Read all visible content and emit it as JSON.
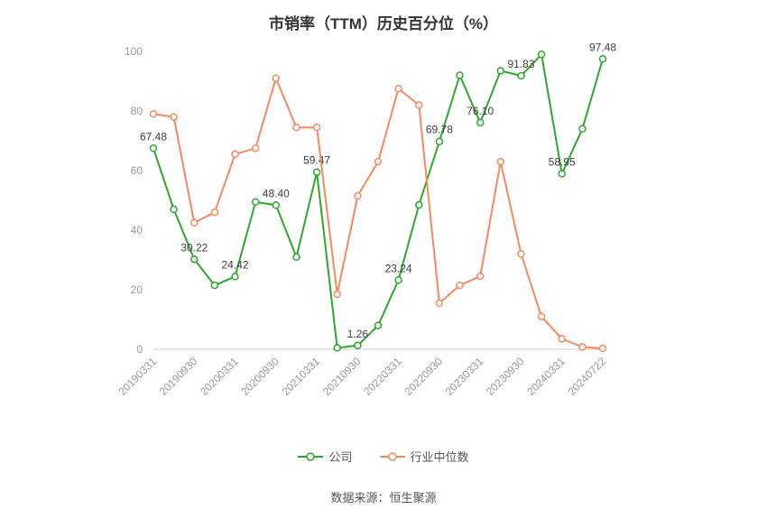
{
  "title": "市销率（TTM）历史百分位（%）",
  "source": "数据来源：恒生聚源",
  "legend": [
    {
      "label": "公司",
      "color": "#2DA82D"
    },
    {
      "label": "行业中位数",
      "color": "#F9885F"
    }
  ],
  "chart_data": {
    "type": "line",
    "title": "市销率（TTM）历史百分位（%）",
    "ylabel": "",
    "xlabel": "",
    "ylim": [
      0,
      100
    ],
    "yticks": [
      0,
      20,
      40,
      60,
      80,
      100
    ],
    "grid": false,
    "legend_position": "bottom",
    "x_tick_labels": [
      "20190331",
      "20190930",
      "20200331",
      "20200930",
      "20210331",
      "20210930",
      "20220331",
      "20220930",
      "20230331",
      "20230930",
      "20240331",
      "20240722"
    ],
    "x_tick_indices": [
      0,
      2,
      4,
      6,
      8,
      10,
      12,
      14,
      16,
      18,
      20,
      22
    ],
    "series": [
      {
        "name": "公司",
        "color": "#2DA82D",
        "values": [
          67.48,
          47.0,
          30.22,
          21.5,
          24.42,
          49.5,
          48.4,
          31.0,
          59.47,
          0.5,
          1.26,
          8.0,
          23.24,
          48.5,
          69.78,
          92.0,
          76.1,
          93.5,
          91.83,
          99.0,
          58.95,
          74.0,
          97.48
        ],
        "point_labels": {
          "0": "67.48",
          "2": "30.22",
          "4": "24.42",
          "6": "48.40",
          "8": "59.47",
          "10": "1.26",
          "12": "23.24",
          "14": "69.78",
          "16": "76.10",
          "18": "91.83",
          "20": "58.95",
          "22": "97.48"
        }
      },
      {
        "name": "行业中位数",
        "color": "#F9885F",
        "values": [
          79.0,
          78.0,
          42.5,
          46.0,
          65.5,
          67.5,
          91.0,
          74.5,
          74.5,
          18.5,
          51.5,
          63.0,
          87.5,
          82.0,
          15.5,
          21.5,
          24.5,
          63.0,
          32.0,
          11.0,
          3.5,
          0.8,
          0.3
        ]
      }
    ]
  }
}
